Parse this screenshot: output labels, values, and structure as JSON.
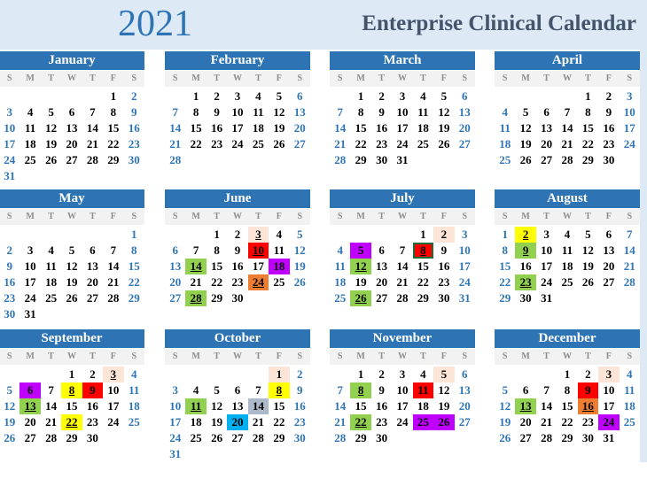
{
  "header": {
    "year": "2021",
    "title": "Enterprise Clinical Calendar"
  },
  "weekday_labels": [
    "S",
    "M",
    "T",
    "W",
    "T",
    "F",
    "S"
  ],
  "colors": {
    "peach": "#fce4d6",
    "red": "#ff0000",
    "green": "#92d050",
    "purple": "#c000ff",
    "orange": "#ed7d31",
    "yellow": "#ffff00",
    "gray": "#acb9ca",
    "cyan": "#00b0f0",
    "header": "#2e74b5",
    "weekend": "#2e75b6"
  },
  "months": [
    {
      "name": "January",
      "first_weekday": 5,
      "days": 31,
      "marks": {}
    },
    {
      "name": "February",
      "first_weekday": 1,
      "days": 28,
      "marks": {}
    },
    {
      "name": "March",
      "first_weekday": 1,
      "days": 31,
      "marks": {}
    },
    {
      "name": "April",
      "first_weekday": 4,
      "days": 30,
      "marks": {}
    },
    {
      "name": "May",
      "first_weekday": 6,
      "days": 31,
      "marks": {}
    },
    {
      "name": "June",
      "first_weekday": 2,
      "days": 30,
      "marks": {
        "3": {
          "c": "peach",
          "u": 1
        },
        "10": {
          "c": "red",
          "u": 1
        },
        "14": {
          "c": "green",
          "u": 1
        },
        "18": {
          "c": "purple"
        },
        "24": {
          "c": "orange",
          "u": 1
        },
        "28": {
          "c": "green",
          "u": 1
        }
      }
    },
    {
      "name": "July",
      "first_weekday": 4,
      "days": 31,
      "marks": {
        "2": {
          "c": "peach"
        },
        "5": {
          "c": "purple"
        },
        "8": {
          "c": "red",
          "u": 1,
          "box": 1
        },
        "12": {
          "c": "green",
          "u": 1
        },
        "26": {
          "c": "green",
          "u": 1
        }
      }
    },
    {
      "name": "August",
      "first_weekday": 0,
      "days": 31,
      "marks": {
        "2": {
          "c": "yellow",
          "u": 1
        },
        "9": {
          "c": "green",
          "u": 1
        },
        "23": {
          "c": "green",
          "u": 1
        }
      }
    },
    {
      "name": "September",
      "first_weekday": 3,
      "days": 30,
      "marks": {
        "3": {
          "c": "peach",
          "u": 1
        },
        "6": {
          "c": "purple"
        },
        "8": {
          "c": "yellow",
          "u": 1
        },
        "9": {
          "c": "red"
        },
        "13": {
          "c": "green",
          "u": 1
        },
        "22": {
          "c": "yellow",
          "u": 1
        }
      }
    },
    {
      "name": "October",
      "first_weekday": 5,
      "days": 31,
      "marks": {
        "1": {
          "c": "peach"
        },
        "8": {
          "c": "yellow",
          "u": 1
        },
        "11": {
          "c": "green",
          "u": 1
        },
        "14": {
          "c": "gray"
        },
        "20": {
          "c": "cyan"
        }
      }
    },
    {
      "name": "November",
      "first_weekday": 1,
      "days": 30,
      "marks": {
        "5": {
          "c": "peach"
        },
        "8": {
          "c": "green",
          "u": 1
        },
        "11": {
          "c": "red"
        },
        "22": {
          "c": "green",
          "u": 1
        },
        "25": {
          "c": "purple"
        },
        "26": {
          "c": "purple"
        }
      }
    },
    {
      "name": "December",
      "first_weekday": 3,
      "days": 31,
      "marks": {
        "3": {
          "c": "peach"
        },
        "9": {
          "c": "red"
        },
        "13": {
          "c": "green",
          "u": 1
        },
        "16": {
          "c": "orange",
          "u": 1
        },
        "24": {
          "c": "purple"
        }
      }
    }
  ]
}
